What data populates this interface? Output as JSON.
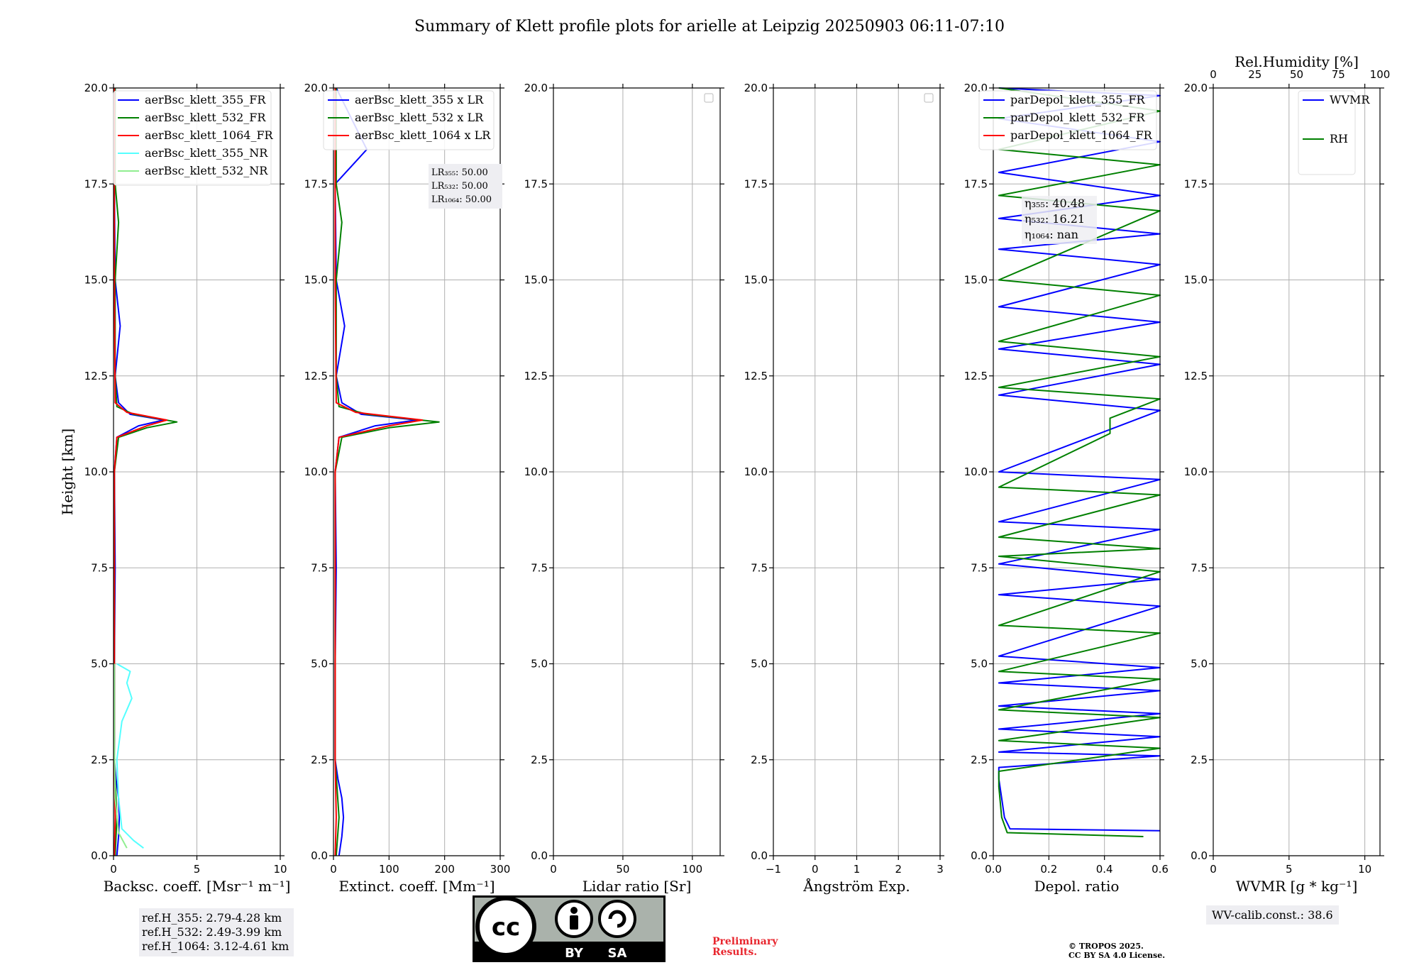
{
  "title": "Summary of Klett profile plots for arielle at Leipzig 20250903 06:11-07:10",
  "colors": {
    "blue": "#0000ff",
    "green": "#008000",
    "red": "#ff0000",
    "cyan": "#55ffff",
    "lightgreen": "#90ee90",
    "grid": "#b0b0b0",
    "box": "#eeeef2",
    "prelim": "#e8262e"
  },
  "chart_data": [
    {
      "type": "line",
      "id": "backscatter",
      "xlabel": "Backsc. coeff. [Msr⁻¹ m⁻¹]",
      "ylabel": "Height [km]",
      "xlim": [
        0,
        10
      ],
      "ylim": [
        0,
        20
      ],
      "xticks": [
        "0",
        "5",
        "10"
      ],
      "yticks": [
        "0.0",
        "2.5",
        "5.0",
        "7.5",
        "10.0",
        "12.5",
        "15.0",
        "17.5",
        "20.0"
      ],
      "legend": [
        "aerBsc_klett_355_FR",
        "aerBsc_klett_532_FR",
        "aerBsc_klett_1064_FR",
        "aerBsc_klett_355_NR",
        "aerBsc_klett_532_NR"
      ],
      "series": [
        {
          "name": "aerBsc_klett_355_FR",
          "color": "blue",
          "points": [
            [
              0.2,
              0
            ],
            [
              0.3,
              0.5
            ],
            [
              0.35,
              1.0
            ],
            [
              0.3,
              1.5
            ],
            [
              0.15,
              2.0
            ],
            [
              0.05,
              2.5
            ],
            [
              0.05,
              5.0
            ],
            [
              0.1,
              7.5
            ],
            [
              0.05,
              10.0
            ],
            [
              0.2,
              10.9
            ],
            [
              1.5,
              11.2
            ],
            [
              3.0,
              11.35
            ],
            [
              1.0,
              11.5
            ],
            [
              0.3,
              11.8
            ],
            [
              0.1,
              12.5
            ],
            [
              0.4,
              13.8
            ],
            [
              0.1,
              15.0
            ],
            [
              0.05,
              17.5
            ],
            [
              0.1,
              20.0
            ]
          ]
        },
        {
          "name": "aerBsc_klett_532_FR",
          "color": "green",
          "points": [
            [
              0.1,
              0
            ],
            [
              0.2,
              1.0
            ],
            [
              0.05,
              2.5
            ],
            [
              0.05,
              5.0
            ],
            [
              0.05,
              7.5
            ],
            [
              0.05,
              10.0
            ],
            [
              0.3,
              10.9
            ],
            [
              2.0,
              11.15
            ],
            [
              3.8,
              11.3
            ],
            [
              1.2,
              11.5
            ],
            [
              0.2,
              11.7
            ],
            [
              0.1,
              12.5
            ],
            [
              0.1,
              15.0
            ],
            [
              0.3,
              16.5
            ],
            [
              0.1,
              17.5
            ],
            [
              0.1,
              20.0
            ]
          ]
        },
        {
          "name": "aerBsc_klett_1064_FR",
          "color": "red",
          "points": [
            [
              0.05,
              0
            ],
            [
              0.1,
              1.0
            ],
            [
              0.05,
              2.5
            ],
            [
              0.05,
              5.0
            ],
            [
              0.05,
              7.5
            ],
            [
              0.05,
              10.0
            ],
            [
              0.2,
              10.9
            ],
            [
              2.0,
              11.2
            ],
            [
              3.2,
              11.35
            ],
            [
              0.8,
              11.55
            ],
            [
              0.1,
              11.8
            ],
            [
              0.05,
              15.0
            ],
            [
              0.05,
              20.0
            ]
          ]
        },
        {
          "name": "aerBsc_klett_355_NR",
          "color": "cyan",
          "points": [
            [
              1.8,
              0.2
            ],
            [
              1.2,
              0.4
            ],
            [
              0.5,
              0.7
            ],
            [
              0.3,
              1.5
            ],
            [
              0.2,
              2.5
            ],
            [
              0.5,
              3.5
            ],
            [
              1.1,
              4.1
            ],
            [
              0.8,
              4.5
            ],
            [
              1.0,
              4.8
            ],
            [
              0.2,
              5.0
            ]
          ]
        },
        {
          "name": "aerBsc_klett_532_NR",
          "color": "lightgreen",
          "points": [
            [
              0.8,
              0.2
            ],
            [
              0.3,
              0.6
            ],
            [
              0.1,
              1.5
            ],
            [
              0.05,
              3.0
            ],
            [
              0.05,
              5.0
            ]
          ]
        }
      ]
    },
    {
      "type": "line",
      "id": "extinction",
      "xlabel": "Extinct. coeff. [Mm⁻¹]",
      "xlim": [
        0,
        300
      ],
      "ylim": [
        0,
        20
      ],
      "xticks": [
        "0",
        "100",
        "200",
        "300"
      ],
      "yticks": [
        "0.0",
        "2.5",
        "5.0",
        "7.5",
        "10.0",
        "12.5",
        "15.0",
        "17.5",
        "20.0"
      ],
      "legend": [
        "aerBsc_klett_355 x LR",
        "aerBsc_klett_532 x LR",
        "aerBsc_klett_1064 x LR"
      ],
      "series": [
        {
          "name": "aerBsc_klett_355 x LR",
          "color": "blue",
          "points": [
            [
              10,
              0
            ],
            [
              15,
              0.5
            ],
            [
              18,
              1.0
            ],
            [
              15,
              1.5
            ],
            [
              8,
              2.0
            ],
            [
              3,
              2.5
            ],
            [
              3,
              5.0
            ],
            [
              5,
              7.5
            ],
            [
              3,
              10.0
            ],
            [
              10,
              10.9
            ],
            [
              75,
              11.2
            ],
            [
              150,
              11.35
            ],
            [
              50,
              11.5
            ],
            [
              15,
              11.8
            ],
            [
              5,
              12.5
            ],
            [
              20,
              13.8
            ],
            [
              5,
              15.0
            ],
            [
              3,
              17.5
            ],
            [
              60,
              18.4
            ],
            [
              5,
              20.0
            ]
          ]
        },
        {
          "name": "aerBsc_klett_532 x LR",
          "color": "green",
          "points": [
            [
              5,
              0
            ],
            [
              10,
              1.0
            ],
            [
              3,
              2.5
            ],
            [
              3,
              5.0
            ],
            [
              3,
              7.5
            ],
            [
              3,
              10.0
            ],
            [
              15,
              10.9
            ],
            [
              100,
              11.15
            ],
            [
              190,
              11.3
            ],
            [
              60,
              11.5
            ],
            [
              10,
              11.7
            ],
            [
              5,
              12.5
            ],
            [
              5,
              15.0
            ],
            [
              15,
              16.5
            ],
            [
              5,
              17.5
            ],
            [
              5,
              20.0
            ]
          ]
        },
        {
          "name": "aerBsc_klett_1064 x LR",
          "color": "red",
          "points": [
            [
              3,
              0
            ],
            [
              5,
              1.0
            ],
            [
              3,
              2.5
            ],
            [
              3,
              5.0
            ],
            [
              3,
              7.5
            ],
            [
              3,
              10.0
            ],
            [
              10,
              10.9
            ],
            [
              100,
              11.2
            ],
            [
              160,
              11.35
            ],
            [
              40,
              11.55
            ],
            [
              5,
              11.8
            ],
            [
              3,
              15.0
            ],
            [
              3,
              20.0
            ]
          ]
        }
      ]
    },
    {
      "type": "line",
      "id": "lidar-ratio",
      "xlabel": "Lidar ratio [Sr]",
      "xlim": [
        0,
        120
      ],
      "ylim": [
        0,
        20
      ],
      "xticks": [
        "0",
        "50",
        "100"
      ],
      "yticks": [
        "0.0",
        "2.5",
        "5.0",
        "7.5",
        "10.0",
        "12.5",
        "15.0",
        "17.5",
        "20.0"
      ],
      "series": []
    },
    {
      "type": "line",
      "id": "angstrom",
      "xlabel": "Ångström Exp.",
      "xlim": [
        -1,
        3
      ],
      "ylim": [
        0,
        20
      ],
      "xticks": [
        "−1",
        "0",
        "1",
        "2",
        "3"
      ],
      "yticks": [
        "0.0",
        "2.5",
        "5.0",
        "7.5",
        "10.0",
        "12.5",
        "15.0",
        "17.5",
        "20.0"
      ],
      "series": []
    },
    {
      "type": "line",
      "id": "depol",
      "xlabel": "Depol. ratio",
      "xlim": [
        0,
        0.6
      ],
      "ylim": [
        0,
        20
      ],
      "xticks": [
        "0.0",
        "0.2",
        "0.4",
        "0.6"
      ],
      "yticks": [
        "0.0",
        "2.5",
        "5.0",
        "7.5",
        "10.0",
        "12.5",
        "15.0",
        "17.5",
        "20.0"
      ],
      "legend": [
        "parDepol_klett_355_FR",
        "parDepol_klett_532_FR",
        "parDepol_klett_1064_FR"
      ],
      "series": [
        {
          "name": "parDepol_klett_355_FR",
          "color": "blue",
          "points": [
            [
              0.6,
              0.65
            ],
            [
              0.06,
              0.7
            ],
            [
              0.04,
              1.0
            ],
            [
              0.03,
              1.5
            ],
            [
              0.02,
              2.0
            ],
            [
              0.02,
              2.3
            ],
            [
              0.6,
              2.6
            ],
            [
              0.02,
              2.7
            ],
            [
              0.6,
              3.1
            ],
            [
              0.02,
              3.3
            ],
            [
              0.6,
              3.7
            ],
            [
              0.02,
              3.9
            ],
            [
              0.6,
              4.3
            ],
            [
              0.02,
              4.5
            ],
            [
              0.6,
              4.9
            ],
            [
              0.02,
              5.2
            ],
            [
              0.6,
              6.5
            ],
            [
              0.02,
              6.8
            ],
            [
              0.6,
              7.2
            ],
            [
              0.02,
              7.6
            ],
            [
              0.6,
              8.5
            ],
            [
              0.02,
              8.7
            ],
            [
              0.6,
              9.8
            ],
            [
              0.02,
              10.0
            ],
            [
              0.6,
              11.6
            ],
            [
              0.02,
              12.0
            ],
            [
              0.6,
              12.8
            ],
            [
              0.02,
              13.2
            ],
            [
              0.6,
              13.9
            ],
            [
              0.02,
              14.3
            ],
            [
              0.6,
              15.4
            ],
            [
              0.02,
              15.8
            ],
            [
              0.6,
              16.2
            ],
            [
              0.02,
              16.6
            ],
            [
              0.6,
              17.2
            ],
            [
              0.02,
              17.8
            ],
            [
              0.6,
              18.6
            ],
            [
              0.02,
              19.2
            ],
            [
              0.6,
              19.8
            ],
            [
              0.02,
              20.0
            ]
          ]
        },
        {
          "name": "parDepol_klett_532_FR",
          "color": "green",
          "points": [
            [
              0.54,
              0.5
            ],
            [
              0.05,
              0.6
            ],
            [
              0.03,
              1.0
            ],
            [
              0.02,
              1.8
            ],
            [
              0.02,
              2.2
            ],
            [
              0.6,
              2.8
            ],
            [
              0.02,
              3.0
            ],
            [
              0.6,
              3.6
            ],
            [
              0.02,
              3.8
            ],
            [
              0.6,
              4.6
            ],
            [
              0.02,
              4.8
            ],
            [
              0.6,
              5.8
            ],
            [
              0.02,
              6.0
            ],
            [
              0.6,
              7.4
            ],
            [
              0.02,
              7.8
            ],
            [
              0.6,
              8.0
            ],
            [
              0.02,
              8.3
            ],
            [
              0.6,
              9.4
            ],
            [
              0.02,
              9.6
            ],
            [
              0.42,
              11.0
            ],
            [
              0.42,
              11.4
            ],
            [
              0.6,
              11.9
            ],
            [
              0.02,
              12.2
            ],
            [
              0.6,
              13.0
            ],
            [
              0.02,
              13.4
            ],
            [
              0.6,
              14.6
            ],
            [
              0.02,
              15.0
            ],
            [
              0.6,
              16.8
            ],
            [
              0.02,
              17.2
            ],
            [
              0.6,
              18.0
            ],
            [
              0.02,
              18.4
            ],
            [
              0.6,
              19.4
            ],
            [
              0.02,
              20.0
            ]
          ]
        }
      ],
      "annotations": [
        "η₃₅₅: 40.48",
        "η₅₃₂: 16.21",
        "η₁₀₆₄: nan"
      ]
    },
    {
      "type": "line",
      "id": "wvmr",
      "xlabel": "WVMR [g * kg⁻¹]",
      "x2label": "Rel.Humidity [%]",
      "xlim": [
        0,
        11
      ],
      "x2lim": [
        0,
        100
      ],
      "ylim": [
        0,
        20
      ],
      "xticks": [
        "0",
        "5",
        "10"
      ],
      "x2ticks": [
        "0",
        "25",
        "50",
        "75",
        "100"
      ],
      "yticks": [
        "0.0",
        "2.5",
        "5.0",
        "7.5",
        "10.0",
        "12.5",
        "15.0",
        "17.5",
        "20.0"
      ],
      "legend": [
        "WVMR",
        "RH"
      ],
      "series": []
    }
  ],
  "lr_box": [
    "LR₃₅₅: 50.00",
    "LR₅₃₂: 50.00",
    "LR₁₀₆₄: 50.00"
  ],
  "ref_heights": [
    "ref.H_355: 2.79-4.28 km",
    "ref.H_532: 2.49-3.99 km",
    "ref.H_1064: 3.12-4.61 km"
  ],
  "wv_calib": "WV-calib.const.: 38.6",
  "license_badge": [
    "cc",
    "BY",
    "SA"
  ],
  "preliminary": [
    "Preliminary",
    "Results."
  ],
  "copyright": [
    "© TROPOS 2025.",
    "CC BY SA 4.0 License."
  ]
}
